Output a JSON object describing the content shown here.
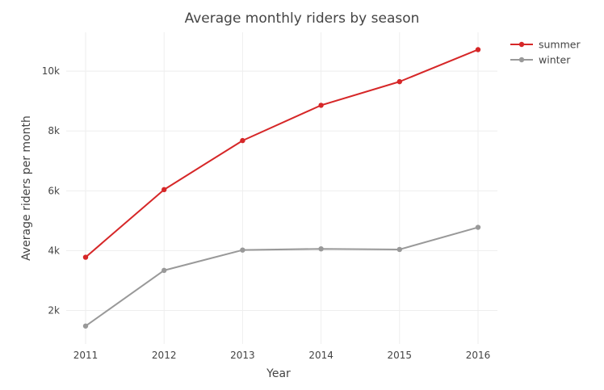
{
  "chart_data": {
    "type": "line",
    "title": "Average monthly riders by season",
    "xlabel": "Year",
    "ylabel": "Average riders per month",
    "x": [
      2011,
      2012,
      2013,
      2014,
      2015,
      2016
    ],
    "x_tick_labels": [
      "2011",
      "2012",
      "2013",
      "2014",
      "2015",
      "2016"
    ],
    "y_ticks": [
      2000,
      4000,
      6000,
      8000,
      10000
    ],
    "y_tick_labels": [
      "2k",
      "4k",
      "6k",
      "8k",
      "10k"
    ],
    "ylim": [
      880,
      11300
    ],
    "grid": true,
    "legend_position": "top-right",
    "series": [
      {
        "name": "summer",
        "color": "#d62728",
        "values": [
          3780,
          6040,
          7680,
          8860,
          9650,
          10720
        ]
      },
      {
        "name": "winter",
        "color": "#999999",
        "values": [
          1480,
          3340,
          4020,
          4060,
          4040,
          4780
        ]
      }
    ]
  }
}
